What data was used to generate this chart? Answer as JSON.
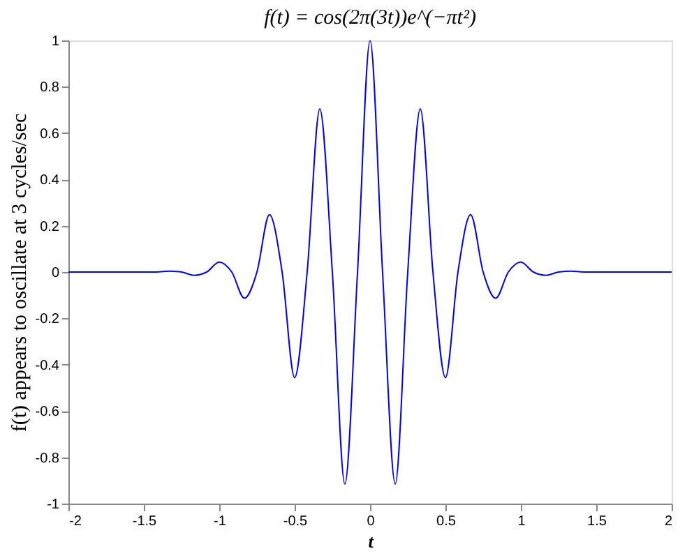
{
  "chart_data": {
    "type": "line",
    "title": "f(t) = cos(2π(3t))e^(−πt²)",
    "xlabel": "t",
    "ylabel": "f(t) appears to oscillate at 3 cycles/sec",
    "series": [
      {
        "color": "#0000ff",
        "x": [
          -2,
          -1.6,
          -1.417,
          -1.333,
          -1.25,
          -1.167,
          -1.083,
          -1.0,
          -0.917,
          -0.833,
          -0.75,
          -0.667,
          -0.583,
          -0.5,
          -0.417,
          -0.333,
          -0.25,
          -0.167,
          -0.083,
          0,
          0.083,
          0.167,
          0.25,
          0.333,
          0.417,
          0.5,
          0.583,
          0.667,
          0.75,
          0.833,
          0.917,
          1.0,
          1.083,
          1.167,
          1.25,
          1.333,
          1.417,
          1.6,
          2
        ],
        "values": [
          0,
          0,
          0,
          0.004,
          0,
          -0.014,
          0,
          0.043,
          0,
          -0.113,
          0,
          0.248,
          0,
          -0.456,
          0,
          0.705,
          0,
          -0.916,
          0,
          1,
          0,
          -0.916,
          0,
          0.705,
          0,
          -0.456,
          0,
          0.248,
          0,
          -0.113,
          0,
          0.043,
          0,
          -0.014,
          0,
          0.004,
          0,
          0,
          0
        ]
      }
    ],
    "xlim": [
      -2,
      2
    ],
    "ylim": [
      -1,
      1
    ],
    "xticks": [
      -2,
      -1.5,
      -1,
      -0.5,
      0,
      0.5,
      1,
      1.5,
      2
    ],
    "yticks": [
      -1,
      -0.8,
      -0.6,
      -0.4,
      -0.2,
      0,
      0.2,
      0.4,
      0.6,
      0.8,
      1
    ],
    "grid": false,
    "line_style": "solid",
    "marker": "none"
  }
}
